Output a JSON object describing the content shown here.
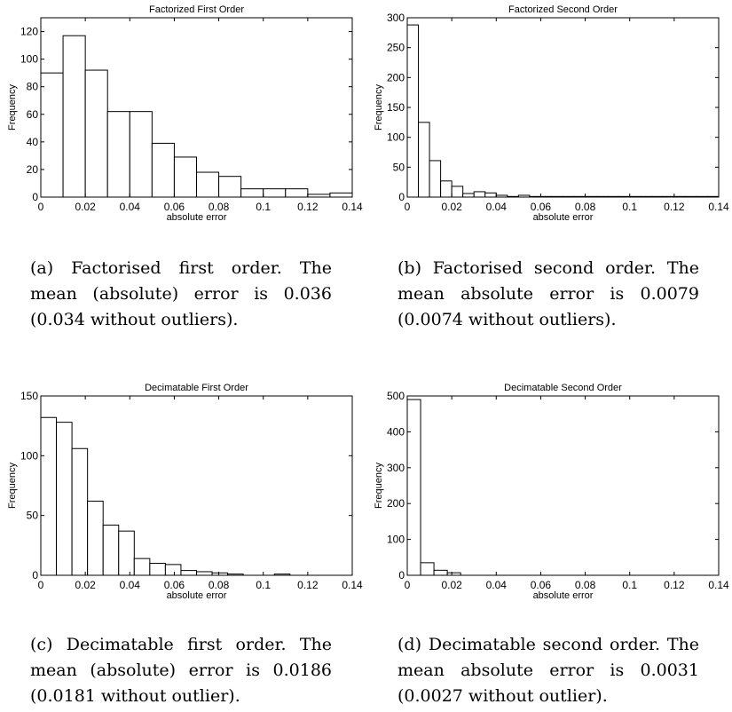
{
  "chart_data": [
    {
      "type": "bar",
      "title": "Factorized First Order",
      "xlabel": "absolute error",
      "ylabel": "Frequency",
      "xlim": [
        0,
        0.14
      ],
      "ylim": [
        0,
        130
      ],
      "xticks": [
        "0",
        "0.02",
        "0.04",
        "0.06",
        "0.08",
        "0.1",
        "0.12",
        "0.14"
      ],
      "yticks": [
        "0",
        "20",
        "40",
        "60",
        "80",
        "100",
        "120"
      ],
      "bin_edges": [
        0,
        0.01,
        0.02,
        0.03,
        0.04,
        0.05,
        0.06,
        0.07,
        0.08,
        0.09,
        0.1,
        0.11,
        0.12,
        0.13,
        0.14
      ],
      "values": [
        90,
        117,
        92,
        62,
        62,
        39,
        29,
        18,
        15,
        6,
        6,
        6,
        2,
        3
      ],
      "grid": false
    },
    {
      "type": "bar",
      "title": "Factorized Second Order",
      "xlabel": "absolute error",
      "ylabel": "Frequency",
      "xlim": [
        0,
        0.14
      ],
      "ylim": [
        0,
        300
      ],
      "xticks": [
        "0",
        "0.02",
        "0.04",
        "0.06",
        "0.08",
        "0.1",
        "0.12",
        "0.14"
      ],
      "yticks": [
        "0",
        "50",
        "100",
        "150",
        "200",
        "250",
        "300"
      ],
      "bin_edges": [
        0,
        0.005,
        0.01,
        0.015,
        0.02,
        0.025,
        0.03,
        0.035,
        0.04,
        0.045,
        0.05,
        0.055,
        0.06,
        0.065,
        0.07,
        0.075,
        0.08,
        0.085,
        0.09,
        0.095,
        0.1,
        0.105,
        0.11,
        0.115,
        0.12,
        0.125,
        0.13,
        0.135,
        0.14
      ],
      "values": [
        288,
        125,
        61,
        27,
        18,
        6,
        9,
        7,
        3,
        1,
        3,
        1,
        1,
        1,
        1,
        1,
        1,
        1,
        1,
        1,
        1,
        1,
        1,
        1,
        1,
        1,
        1,
        1
      ],
      "grid": false
    },
    {
      "type": "bar",
      "title": "Decimatable First Order",
      "xlabel": "absolute error",
      "ylabel": "Frequency",
      "xlim": [
        0,
        0.14
      ],
      "ylim": [
        0,
        150
      ],
      "xticks": [
        "0",
        "0.02",
        "0.04",
        "0.06",
        "0.08",
        "0.1",
        "0.12",
        "0.14"
      ],
      "yticks": [
        "0",
        "50",
        "100",
        "150"
      ],
      "bin_edges": [
        0,
        0.007,
        0.014,
        0.021,
        0.028,
        0.035,
        0.042,
        0.049,
        0.056,
        0.063,
        0.07,
        0.077,
        0.084,
        0.091,
        0.098,
        0.105,
        0.112,
        0.119,
        0.126,
        0.133,
        0.14
      ],
      "values": [
        132,
        128,
        106,
        62,
        42,
        37,
        14,
        10,
        9,
        4,
        3,
        2,
        1,
        0,
        0,
        1,
        0,
        0,
        0,
        0
      ],
      "grid": false
    },
    {
      "type": "bar",
      "title": "Decimatable Second Order",
      "xlabel": "absolute error",
      "ylabel": "Frequency",
      "xlim": [
        0,
        0.14
      ],
      "ylim": [
        0,
        500
      ],
      "xticks": [
        "0",
        "0.02",
        "0.04",
        "0.06",
        "0.08",
        "0.1",
        "0.12",
        "0.14"
      ],
      "yticks": [
        "0",
        "100",
        "200",
        "300",
        "400",
        "500"
      ],
      "bin_edges": [
        0,
        0.006,
        0.012,
        0.018,
        0.024
      ],
      "values": [
        490,
        35,
        14,
        7
      ],
      "grid": false
    }
  ],
  "captions": {
    "a": "(a) Factorised first order. The mean (absolute) error is 0.036 (0.034 without outliers).",
    "b": "(b) Factorised second order. The mean absolute error is 0.0079 (0.0074 without outliers).",
    "c": "(c) Decimatable first order. The mean (absolute) error is 0.0186 (0.0181 without outlier).",
    "d": "(d) Decimatable second order. The mean absolute error is 0.0031 (0.0027 without outlier)."
  }
}
